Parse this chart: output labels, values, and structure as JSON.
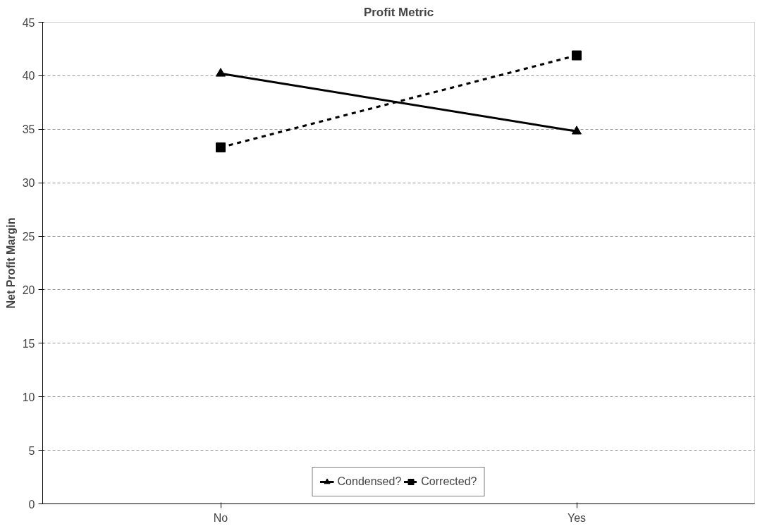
{
  "chart_data": {
    "type": "line",
    "title": "Profit Metric",
    "ylabel": "Net Profit Margin",
    "categories": [
      "No",
      "Yes"
    ],
    "series": [
      {
        "name": "Condensed?",
        "color": "#000000",
        "values": [
          40.2,
          34.8
        ],
        "marker": "triangle",
        "line_style": "solid"
      },
      {
        "name": "Corrected?",
        "color": "#000000",
        "values": [
          33.3,
          41.9
        ],
        "marker": "square",
        "line_style": "dashed"
      }
    ],
    "ylim": [
      0,
      45
    ],
    "yticks": [
      0,
      5,
      10,
      15,
      20,
      25,
      30,
      35,
      40,
      45
    ],
    "grid": "y",
    "legend": "bottom"
  }
}
